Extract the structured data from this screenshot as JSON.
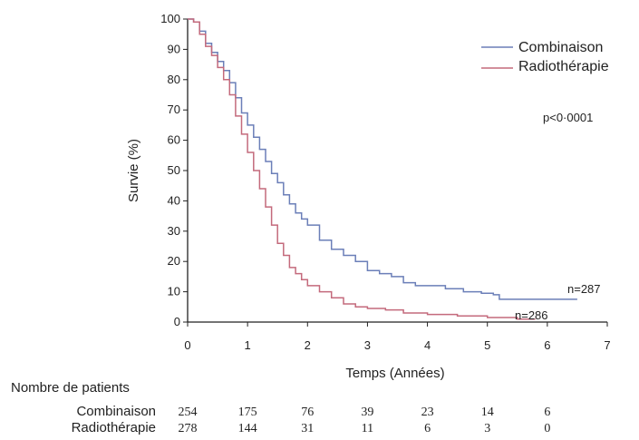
{
  "chart_data": {
    "type": "line",
    "xlabel": "Temps (Années)",
    "ylabel": "Survie (%)",
    "xlim": [
      0,
      7
    ],
    "ylim": [
      0,
      100
    ],
    "xticks": [
      "0",
      "1",
      "2",
      "3",
      "4",
      "5",
      "6",
      "7"
    ],
    "yticks": [
      "0",
      "10",
      "20",
      "30",
      "40",
      "50",
      "60",
      "70",
      "80",
      "90",
      "100"
    ],
    "grid": false,
    "legend": "top-right",
    "annotation": "p<0·0001",
    "series": [
      {
        "name": "Combinaison",
        "color": "#6b7fb8",
        "end_label": "n=287",
        "x": [
          0,
          0.1,
          0.2,
          0.3,
          0.4,
          0.5,
          0.6,
          0.7,
          0.8,
          0.9,
          1.0,
          1.1,
          1.2,
          1.3,
          1.4,
          1.5,
          1.6,
          1.7,
          1.8,
          1.9,
          2.0,
          2.2,
          2.4,
          2.6,
          2.8,
          3.0,
          3.2,
          3.4,
          3.6,
          3.8,
          4.0,
          4.3,
          4.6,
          4.9,
          5.1,
          5.2,
          5.5,
          6.0,
          6.5
        ],
        "y": [
          100,
          99,
          96,
          92,
          89,
          86,
          83,
          79,
          74,
          69,
          65,
          61,
          57,
          53,
          49,
          46,
          42,
          39,
          36,
          34,
          32,
          27,
          24,
          22,
          20,
          17,
          16,
          15,
          13,
          12,
          12,
          11,
          10,
          9.5,
          9,
          7.5,
          7.5,
          7.5,
          7.5
        ]
      },
      {
        "name": "Radiothérapie",
        "color": "#c46a7c",
        "end_label": "n=286",
        "x": [
          0,
          0.1,
          0.2,
          0.3,
          0.4,
          0.5,
          0.6,
          0.7,
          0.8,
          0.9,
          1.0,
          1.1,
          1.2,
          1.3,
          1.4,
          1.5,
          1.6,
          1.7,
          1.8,
          1.9,
          2.0,
          2.2,
          2.4,
          2.6,
          2.8,
          3.0,
          3.3,
          3.6,
          4.0,
          4.5,
          5.0,
          5.5,
          5.8
        ],
        "y": [
          100,
          99,
          95,
          91,
          88,
          84,
          80,
          75,
          68,
          62,
          56,
          50,
          44,
          38,
          32,
          26,
          22,
          18,
          16,
          14,
          12,
          10,
          8,
          6,
          5,
          4.5,
          4,
          3,
          2.5,
          2,
          1.5,
          1,
          1
        ]
      }
    ],
    "risk_table": {
      "title": "Nombre de patients",
      "times": [
        0,
        1,
        2,
        3,
        4,
        5,
        6
      ],
      "rows": [
        {
          "label": "Combinaison",
          "values": [
            "254",
            "175",
            "76",
            "39",
            "23",
            "14",
            "6"
          ]
        },
        {
          "label": "Radiothérapie",
          "values": [
            "278",
            "144",
            "31",
            "11",
            "6",
            "3",
            "0"
          ]
        }
      ]
    }
  }
}
